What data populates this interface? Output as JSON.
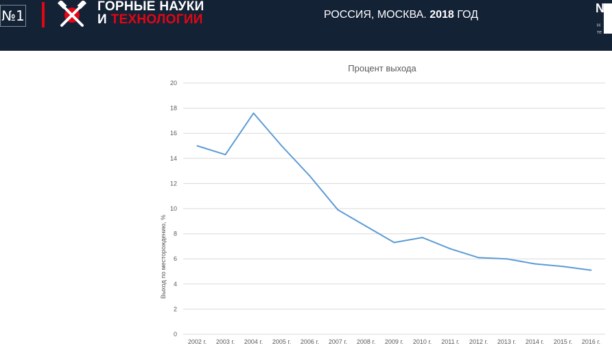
{
  "header": {
    "badge": "№1",
    "logo_line1": "ГОРНЫЕ НАУКИ",
    "logo_line2_prefix": "И",
    "logo_line2_accent": "ТЕХНОЛОГИИ",
    "place_prefix": "РОССИЯ, МОСКВА.",
    "place_year": "2018",
    "place_suffix": "ГОД",
    "cut_big": "N",
    "cut_line1": "Н",
    "cut_line2": "те"
  },
  "colors": {
    "header_bg": "#142236",
    "accent_red": "#e30613",
    "series_line": "#5b9bd5",
    "grid": "#d9d9d9"
  },
  "chart_data": {
    "type": "line",
    "title": "Процент выхода",
    "xlabel": "",
    "ylabel": "Выход по месторождению, %",
    "categories": [
      "2002 г.",
      "2003 г.",
      "2004 г.",
      "2005 г.",
      "2006 г.",
      "2007 г.",
      "2008 г.",
      "2009 г.",
      "2010 г.",
      "2011 г.",
      "2012 г.",
      "2013 г.",
      "2014 г.",
      "2015 г.",
      "2016 г."
    ],
    "series": [
      {
        "values": [
          15.0,
          14.3,
          17.6,
          15.0,
          12.6,
          9.9,
          8.6,
          7.3,
          7.7,
          6.8,
          6.1,
          6.0,
          5.6,
          5.4,
          5.1
        ]
      }
    ],
    "ylim": [
      0,
      20
    ],
    "yticks": [
      0,
      2,
      4,
      6,
      8,
      10,
      12,
      14,
      16,
      18,
      20
    ],
    "grid": true,
    "legend": "none"
  }
}
